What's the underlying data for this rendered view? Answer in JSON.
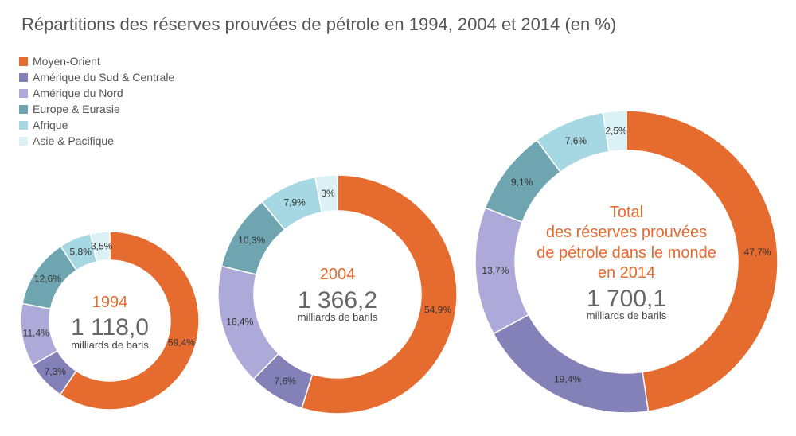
{
  "chart_data": [
    {
      "type": "pie",
      "title": "Répartitions des réserves prouvées de pétrole en 1994, 2004 et 2014 (en %)",
      "year": "1994",
      "total": "1 118,0",
      "unit": "milliards de baris",
      "values": [
        59.4,
        7.3,
        11.4,
        12.6,
        5.8,
        3.5
      ],
      "labels": [
        "59,4%",
        "7,3%",
        "11,4%",
        "12,6%",
        "5,8%",
        "3,5%"
      ]
    },
    {
      "type": "pie",
      "year": "2004",
      "total": "1 366,2",
      "unit": "milliards de barils",
      "values": [
        54.9,
        7.6,
        16.4,
        10.3,
        7.9,
        3
      ],
      "labels": [
        "54,9%",
        "7,6%",
        "16,4%",
        "10,3%",
        "7,9%",
        "3%"
      ]
    },
    {
      "type": "pie",
      "heading": [
        "Total",
        "des réserves prouvées",
        "de pétrole dans le monde",
        "en 2014"
      ],
      "year": "2014",
      "total": "1 700,1",
      "unit": "milliards de barils",
      "values": [
        47.7,
        19.4,
        13.7,
        9.1,
        7.6,
        2.5
      ],
      "labels": [
        "47,7%",
        "19,4%",
        "13,7%",
        "9,1%",
        "7,6%",
        "2,5%"
      ]
    }
  ],
  "title": "Répartitions des réserves prouvées de pétrole en 1994, 2004 et 2014 (en %)",
  "legend": [
    {
      "label": "Moyen-Orient",
      "color": "#E56B2F"
    },
    {
      "label": "Amérique du Sud & Centrale",
      "color": "#8480B8"
    },
    {
      "label": "Amérique du Nord",
      "color": "#ADA9D9"
    },
    {
      "label": "Europe & Eurasie",
      "color": "#6FA5B1"
    },
    {
      "label": "Afrique",
      "color": "#A6D8E3"
    },
    {
      "label": "Asie & Pacifique",
      "color": "#DCF1F5"
    }
  ]
}
